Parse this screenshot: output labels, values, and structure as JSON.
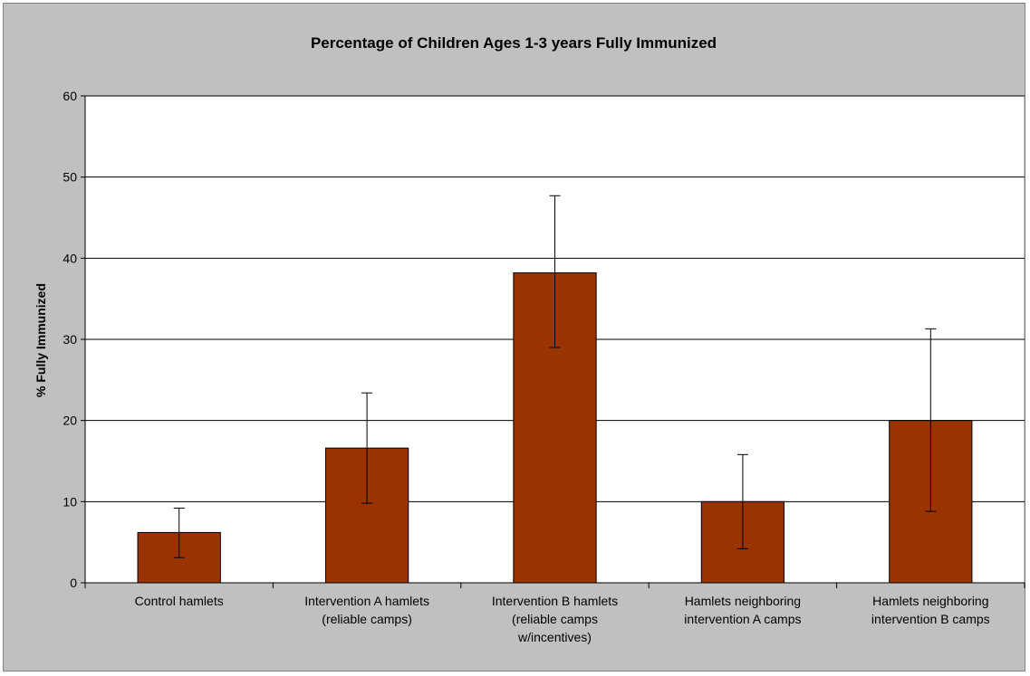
{
  "chart_data": {
    "type": "bar",
    "title": "Percentage of Children Ages 1-3 years Fully Immunized",
    "xlabel": "",
    "ylabel": "% Fully Immunized",
    "ylim": [
      0,
      60
    ],
    "yticks": [
      0,
      10,
      20,
      30,
      40,
      50,
      60
    ],
    "grid": true,
    "legend": "none",
    "categories": [
      [
        "Control hamlets"
      ],
      [
        "Intervention A hamlets",
        "(reliable camps)"
      ],
      [
        "Intervention B hamlets",
        "(reliable camps",
        "w/incentives)"
      ],
      [
        "Hamlets neighboring",
        "intervention A camps"
      ],
      [
        "Hamlets neighboring",
        "intervention B camps"
      ]
    ],
    "series": [
      {
        "values": [
          6.2,
          16.6,
          38.2,
          10.0,
          20.0
        ],
        "error_low": [
          3.1,
          9.8,
          29.0,
          4.2,
          8.8
        ],
        "error_high": [
          9.2,
          23.4,
          47.7,
          15.8,
          31.3
        ]
      }
    ],
    "colors": {
      "bar": "#993300",
      "plot_bg": "#ffffff",
      "frame_bg": "#c0c0c0",
      "gridline": "#000000"
    }
  }
}
